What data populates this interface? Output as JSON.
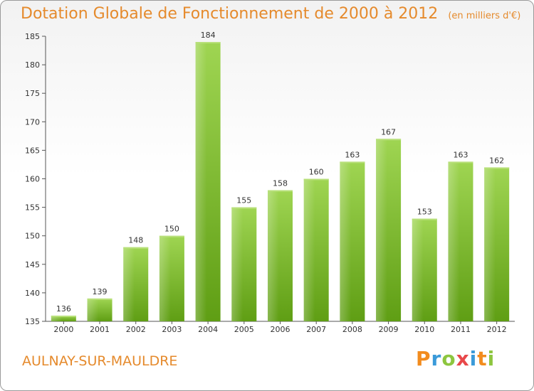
{
  "title": "Dotation Globale de Fonctionnement de 2000 à 2012",
  "subtitle": "(en milliers d'€)",
  "location": "AULNAY-SUR-MAULDRE",
  "logo": {
    "letters": [
      "P",
      "r",
      "o",
      "x",
      "i",
      "t",
      "i"
    ],
    "colors": [
      "#f28c1e",
      "#3a9ad9",
      "#8dc63f",
      "#e8484a",
      "#3a9ad9",
      "#f28c1e",
      "#8dc63f"
    ]
  },
  "colors": {
    "bar": "#7cbf2e",
    "bar_light": "#9ed64c",
    "text_accent": "#e58a2c"
  },
  "chart_data": {
    "type": "bar",
    "categories": [
      "2000",
      "2001",
      "2002",
      "2003",
      "2004",
      "2005",
      "2006",
      "2007",
      "2008",
      "2009",
      "2010",
      "2011",
      "2012"
    ],
    "values": [
      136,
      139,
      148,
      150,
      184,
      155,
      158,
      160,
      163,
      167,
      153,
      163,
      162
    ],
    "ylim": [
      135,
      185
    ],
    "yticks": [
      135,
      140,
      145,
      150,
      155,
      160,
      165,
      170,
      175,
      180,
      185
    ],
    "grid": false,
    "xlabel": "",
    "ylabel": ""
  }
}
